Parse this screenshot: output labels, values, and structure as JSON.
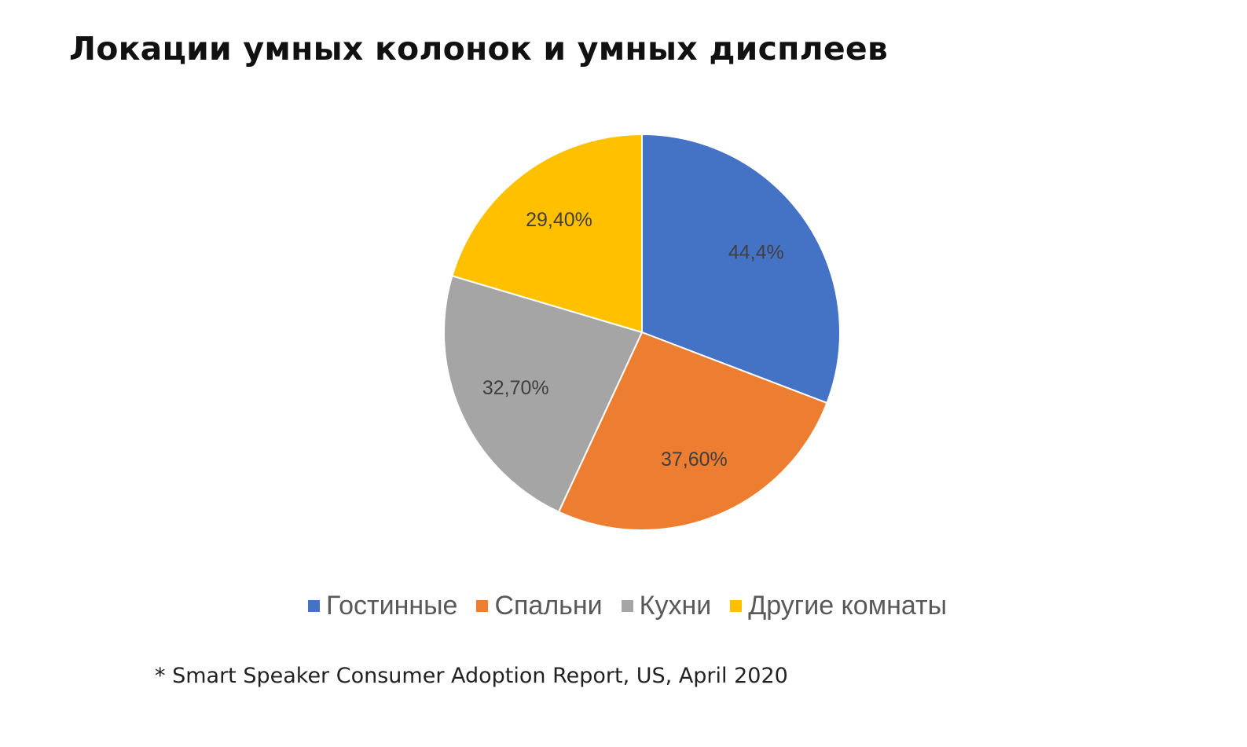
{
  "page": {
    "title": "Локации умных колонок и умных дисплеев",
    "footnote": "* Smart Speaker Consumer Adoption Report, US, April 2020"
  },
  "chart_data": {
    "type": "pie",
    "title": "Локации умных колонок и умных дисплеев",
    "categories": [
      "Гостинные",
      "Спальни",
      "Кухни",
      "Другие комнаты"
    ],
    "values": [
      44.4,
      37.6,
      32.7,
      29.4
    ],
    "data_labels": [
      "44,4%",
      "37,60%",
      "32,70%",
      "29,40%"
    ],
    "colors": [
      "#4472C4",
      "#ED7D31",
      "#A5A5A5",
      "#FFC000"
    ],
    "start": "12 o'clock, clockwise",
    "legend_position": "bottom"
  }
}
